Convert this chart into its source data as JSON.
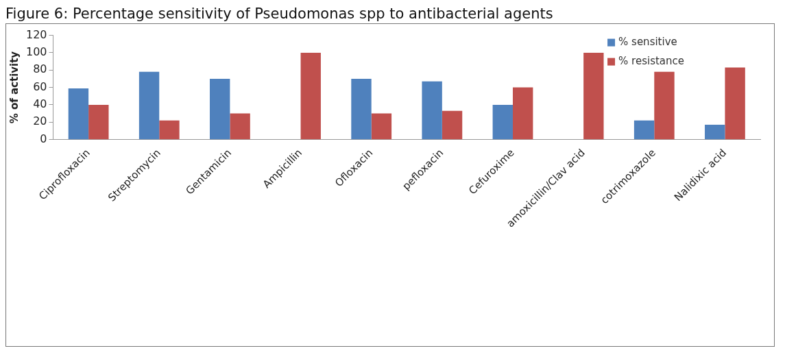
{
  "chart_data": {
    "type": "bar",
    "title": "Figure 6: Percentage sensitivity of Pseudomonas spp to antibacterial agents",
    "ylabel": "% of activity",
    "categories": [
      "Ciprofloxacin",
      "Streptomycin",
      "Gentamicin",
      "Ampicillin",
      "Ofloxacin",
      "pefloxacin",
      "Cefuroxime",
      "amoxicillin/Clav acid",
      "cotrimoxazole",
      "Nalidixic acid"
    ],
    "series": [
      {
        "name": "% sensitive",
        "color": "#4f81bd",
        "values": [
          59,
          78,
          70,
          0,
          70,
          67,
          40,
          0,
          22,
          17
        ]
      },
      {
        "name": "% resistance",
        "color": "#c0504d",
        "values": [
          40,
          22,
          30,
          100,
          30,
          33,
          60,
          100,
          78,
          83
        ]
      }
    ],
    "ylim": [
      0,
      120
    ],
    "yticks": [
      0,
      20,
      40,
      60,
      80,
      100,
      120
    ],
    "grid": false,
    "legend": "top right"
  }
}
